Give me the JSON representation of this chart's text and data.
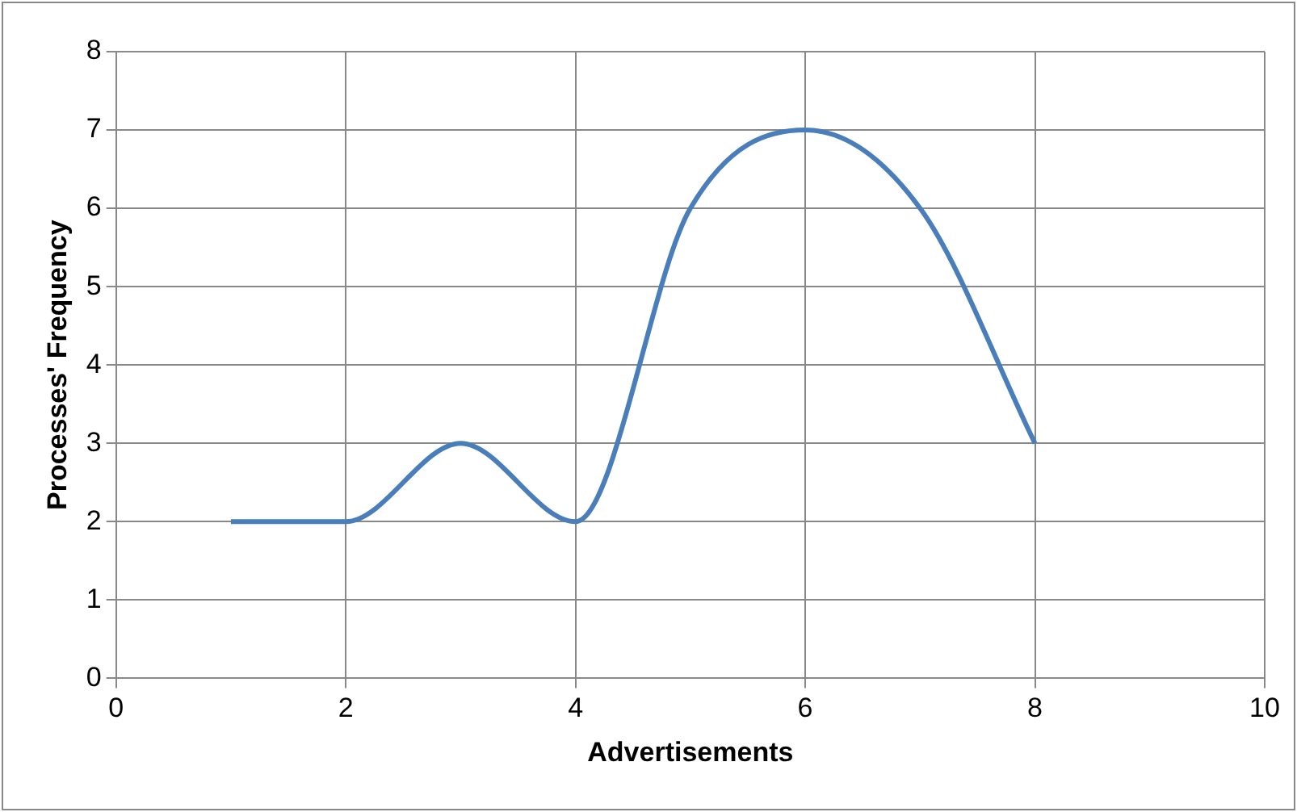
{
  "chart_data": {
    "type": "line",
    "xlabel": "Advertisements",
    "ylabel": "Processes' Frequency",
    "x": [
      1,
      2,
      3,
      4,
      5,
      6,
      7,
      8
    ],
    "series": [
      {
        "color": "#4a7ebb",
        "values": [
          2,
          2,
          3,
          2,
          6,
          7,
          6,
          3
        ]
      }
    ],
    "xlim": [
      0,
      10
    ],
    "xticks": [
      0,
      2,
      4,
      6,
      8,
      10
    ],
    "ylim": [
      0,
      8
    ],
    "yticks": [
      0,
      1,
      2,
      3,
      4,
      5,
      6,
      7,
      8
    ],
    "grid": true,
    "legend": false,
    "marker": "none",
    "line_style": "solid"
  }
}
